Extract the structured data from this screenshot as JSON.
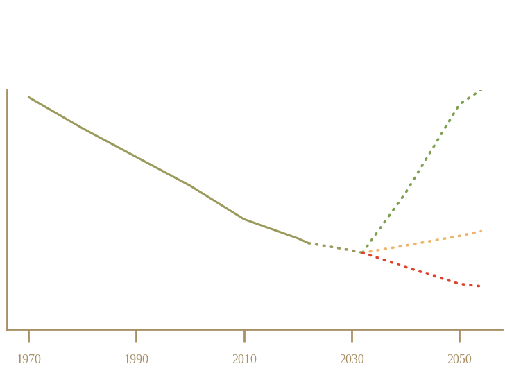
{
  "chart_data": {
    "type": "line",
    "x": [
      1970,
      1980,
      1990,
      2000,
      2010,
      2020,
      2022,
      2030,
      2032,
      2040,
      2050,
      2054
    ],
    "series": [
      {
        "color": "#9a9a5c",
        "line_style": "solid",
        "values": [
          97,
          84,
          72,
          60,
          46,
          38,
          36,
          null,
          null,
          null,
          null,
          null
        ]
      },
      {
        "color": "#9a9a5c",
        "line_style": "dotted",
        "values": [
          null,
          null,
          null,
          null,
          null,
          null,
          36,
          33,
          32,
          null,
          null,
          null
        ]
      },
      {
        "color": "#7fa050",
        "line_style": "dotted",
        "values": [
          null,
          null,
          null,
          null,
          null,
          null,
          null,
          null,
          32,
          57,
          94,
          100
        ]
      },
      {
        "color": "#f0b468",
        "line_style": "dotted",
        "values": [
          null,
          null,
          null,
          null,
          null,
          null,
          null,
          null,
          32,
          35,
          39,
          41
        ]
      },
      {
        "color": "#e0402c",
        "line_style": "dotted",
        "values": [
          null,
          null,
          null,
          null,
          null,
          null,
          null,
          null,
          32,
          26,
          19,
          18
        ]
      }
    ],
    "xlim": [
      1966,
      2058
    ],
    "xticks": [
      1970,
      1990,
      2010,
      2030,
      2050
    ],
    "ylim": [
      0,
      100
    ],
    "yticks": [],
    "tick_labels": "x",
    "grid": false
  }
}
